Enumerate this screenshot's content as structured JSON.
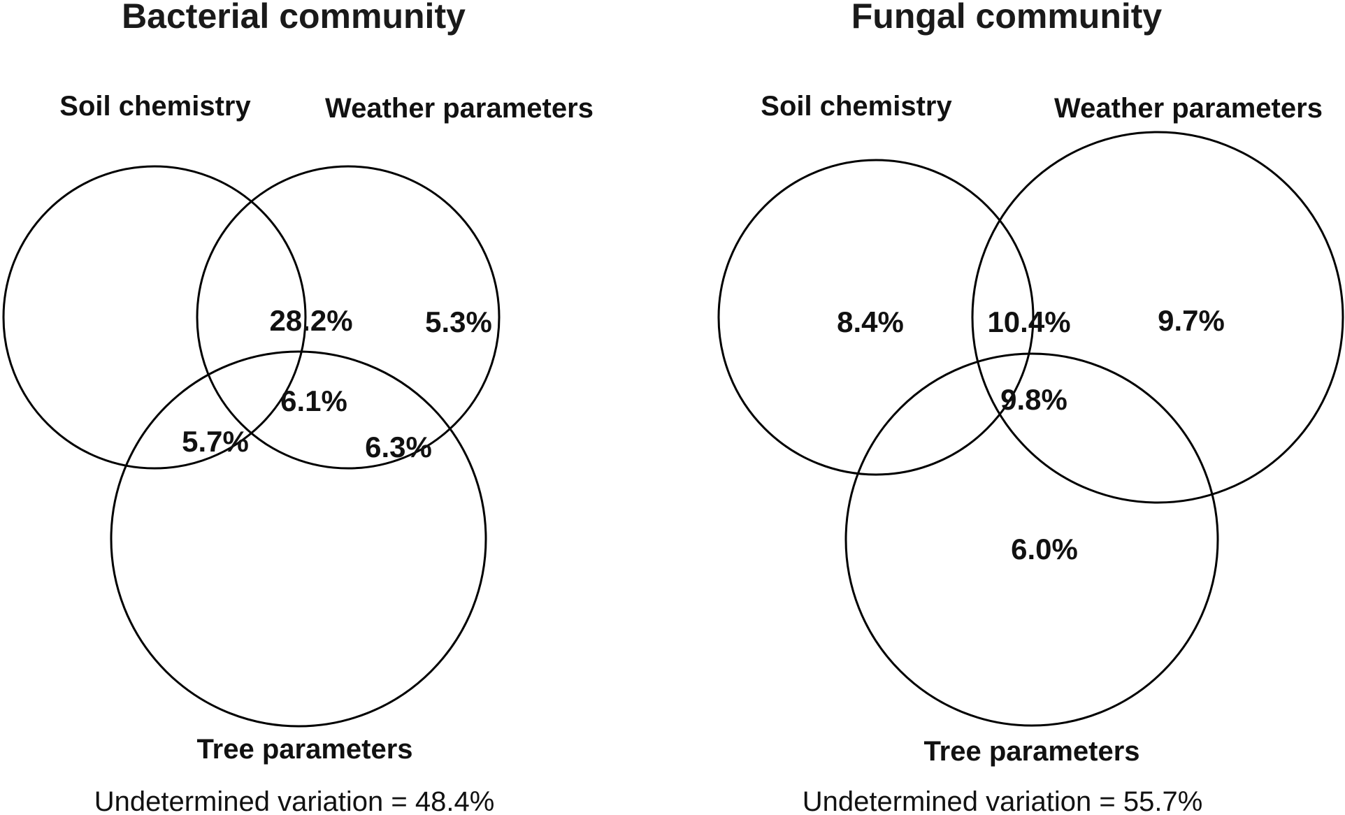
{
  "panels": [
    {
      "title": "Bacterial community",
      "sets": {
        "soil": "Soil chemistry",
        "weather": "Weather parameters",
        "tree": "Tree parameters"
      },
      "regions": {
        "soil_weather": "28.2%",
        "weather_only": "5.3%",
        "all_three": "6.1%",
        "soil_tree": "5.7%",
        "weather_tree": "6.3%"
      },
      "undetermined": "Undetermined variation = 48.4%"
    },
    {
      "title": "Fungal community",
      "sets": {
        "soil": "Soil chemistry",
        "weather": "Weather parameters",
        "tree": "Tree parameters"
      },
      "regions": {
        "soil_only": "8.4%",
        "soil_weather": "10.4%",
        "weather_only": "9.7%",
        "all_three": "9.8%",
        "tree_only": "6.0%"
      },
      "undetermined": "Undetermined variation = 55.7%"
    }
  ]
}
